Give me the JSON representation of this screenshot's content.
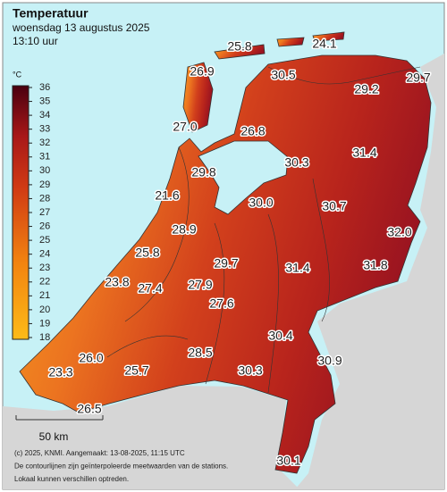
{
  "header": {
    "title": "Temperatuur",
    "subtitle": "woensdag 13 augustus 2025",
    "time": "13:10 uur"
  },
  "colorbar": {
    "unit": "°C",
    "ticks": [
      36,
      35,
      34,
      33,
      32,
      31,
      30,
      29,
      28,
      27,
      26,
      25,
      24,
      23,
      22,
      21,
      20,
      19,
      18
    ]
  },
  "stations": [
    "25.8",
    "24.1",
    "26.9",
    "30.5",
    "29.2",
    "29.7",
    "27.0",
    "26.8",
    "30.3",
    "31.4",
    "29.8",
    "21.6",
    "30.0",
    "30.7",
    "32.0",
    "28.9",
    "25.8",
    "29.7",
    "31.4",
    "31.8",
    "23.8",
    "27.4",
    "27.9",
    "27.6",
    "28.5",
    "30.4",
    "30.3",
    "30.9",
    "26.0",
    "23.3",
    "25.7",
    "26.5",
    "30.1"
  ],
  "scale": {
    "label": "50 km"
  },
  "footer": [
    "(c) 2025, KNMI. Aangemaakt: 13-08-2025, 11:15 UTC",
    "De contourlijnen zijn geïnterpoleerde meetwaarden van de stations.",
    "Lokaal kunnen verschillen optreden."
  ]
}
